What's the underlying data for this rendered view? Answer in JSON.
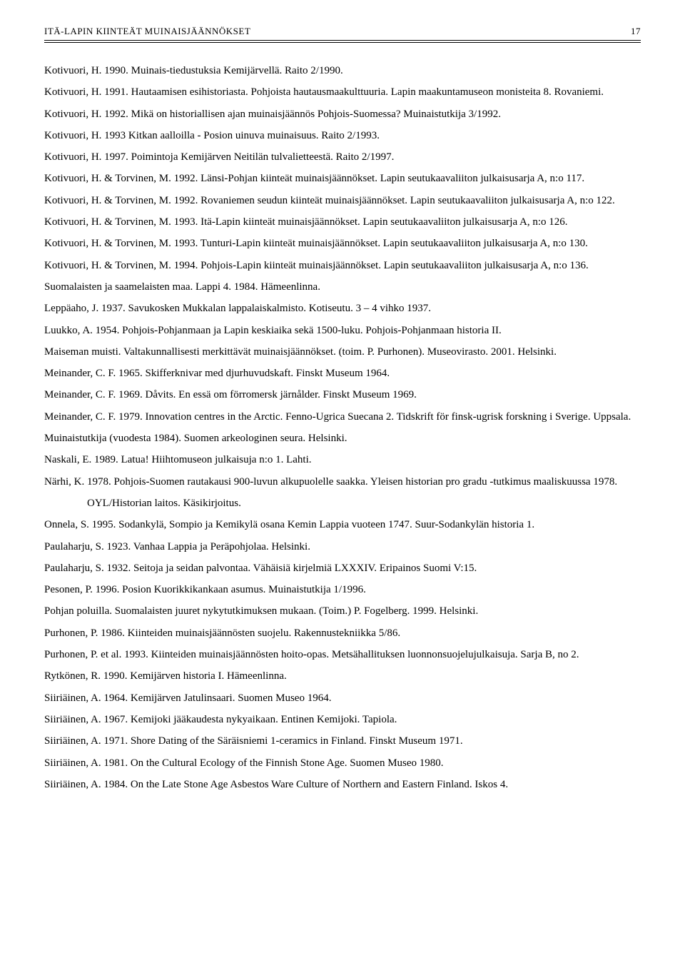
{
  "header": {
    "title": "ITÄ-LAPIN KIINTEÄT MUINAISJÄÄNNÖKSET",
    "page_number": "17"
  },
  "refs": [
    "Kotivuori, H. 1990. Muinais-tiedustuksia Kemijärvellä. Raito 2/1990.",
    "Kotivuori, H. 1991. Hautaamisen esihistoriasta. Pohjoista hautausmaakulttuuria. Lapin maakuntamuseon monisteita 8. Rovaniemi.",
    "Kotivuori, H. 1992. Mikä on historiallisen ajan muinaisjäännös Pohjois-Suomessa? Muinaistutkija 3/1992.",
    "Kotivuori, H. 1993 Kitkan aalloilla - Posion uinuva muinaisuus. Raito 2/1993.",
    "Kotivuori, H. 1997. Poimintoja Kemijärven Neitilän tulvalietteestä. Raito 2/1997.",
    "Kotivuori, H. & Torvinen, M. 1992. Länsi-Pohjan kiinteät muinaisjäännökset. Lapin seutukaavaliiton julkaisusarja A, n:o 117.",
    "Kotivuori, H. & Torvinen, M. 1992. Rovaniemen seudun kiinteät muinaisjäännökset. Lapin seutukaavaliiton julkaisusarja A, n:o 122.",
    "Kotivuori, H. & Torvinen, M. 1993. Itä-Lapin kiinteät muinaisjäännökset. Lapin seutukaavaliiton julkaisusarja A, n:o 126.",
    "Kotivuori, H. & Torvinen, M. 1993. Tunturi-Lapin kiinteät muinaisjäännökset. Lapin seutukaavaliiton julkaisusarja A, n:o 130.",
    "Kotivuori, H. & Torvinen, M. 1994. Pohjois-Lapin kiinteät muinaisjäännökset. Lapin seutukaavaliiton julkaisusarja A, n:o 136.",
    "Suomalaisten ja saamelaisten maa. Lappi 4. 1984. Hämeenlinna.",
    "Leppäaho, J. 1937. Savukosken Mukkalan lappalaiskalmisto. Kotiseutu. 3 – 4 vihko 1937.",
    "Luukko, A. 1954. Pohjois-Pohjanmaan ja Lapin keskiaika sekä 1500-luku. Pohjois-Pohjanmaan historia II.",
    "Maiseman muisti. Valtakunnallisesti merkittävät muinaisjäännökset. (toim. P. Purhonen). Museovirasto. 2001. Helsinki.",
    "Meinander, C. F. 1965. Skifferknivar med djurhuvudskaft. Finskt Museum 1964.",
    "Meinander, C. F. 1969. Dåvits. En essä om förromersk järnålder. Finskt Museum 1969.",
    "Meinander, C. F. 1979. Innovation centres in the Arctic. Fenno-Ugrica Suecana 2. Tidskrift för finsk-ugrisk forskning i Sverige. Uppsala.",
    "Muinaistutkija (vuodesta 1984). Suomen arkeologinen seura. Helsinki.",
    "Naskali, E. 1989. Latua! Hiihtomuseon julkaisuja n:o 1. Lahti.",
    "Närhi, K. 1978. Pohjois-Suomen rautakausi 900-luvun alkupuolelle saakka. Yleisen historian pro gradu -tutkimus maaliskuussa 1978. OYL/Historian laitos. Käsikirjoitus.",
    "Onnela, S. 1995. Sodankylä, Sompio ja Kemikylä osana Kemin Lappia vuoteen 1747. Suur-Sodankylän historia 1.",
    "Paulaharju, S. 1923. Vanhaa Lappia ja Peräpohjolaa. Helsinki.",
    "Paulaharju, S. 1932. Seitoja ja seidan palvontaa. Vähäisiä kirjelmiä LXXXIV. Eripainos Suomi V:15.",
    "Pesonen, P. 1996. Posion Kuorikkikankaan asumus. Muinaistutkija 1/1996.",
    "Pohjan poluilla. Suomalaisten juuret nykytutkimuksen mukaan. (Toim.) P. Fogelberg. 1999. Helsinki.",
    "Purhonen, P. 1986. Kiinteiden muinaisjäännösten suojelu. Rakennustekniikka 5/86.",
    "Purhonen, P. et al. 1993. Kiinteiden muinaisjäännösten hoito-opas. Metsähallituksen luonnonsuojelujulkaisuja. Sarja B, no 2.",
    "Rytkönen, R. 1990. Kemijärven historia I. Hämeenlinna.",
    "Siiriäinen, A. 1964. Kemijärven Jatulinsaari. Suomen Museo 1964.",
    "Siiriäinen, A. 1967. Kemijoki jääkaudesta nykyaikaan. Entinen Kemijoki. Tapiola.",
    "Siiriäinen, A. 1971. Shore Dating of the Säräisniemi 1-ceramics in Finland. Finskt Museum 1971.",
    "Siiriäinen, A. 1981. On the Cultural Ecology of the Finnish Stone Age. Suomen Museo 1980.",
    "Siiriäinen, A. 1984. On the Late Stone Age Asbestos Ware Culture of Northern and Eastern Finland. Iskos 4."
  ]
}
